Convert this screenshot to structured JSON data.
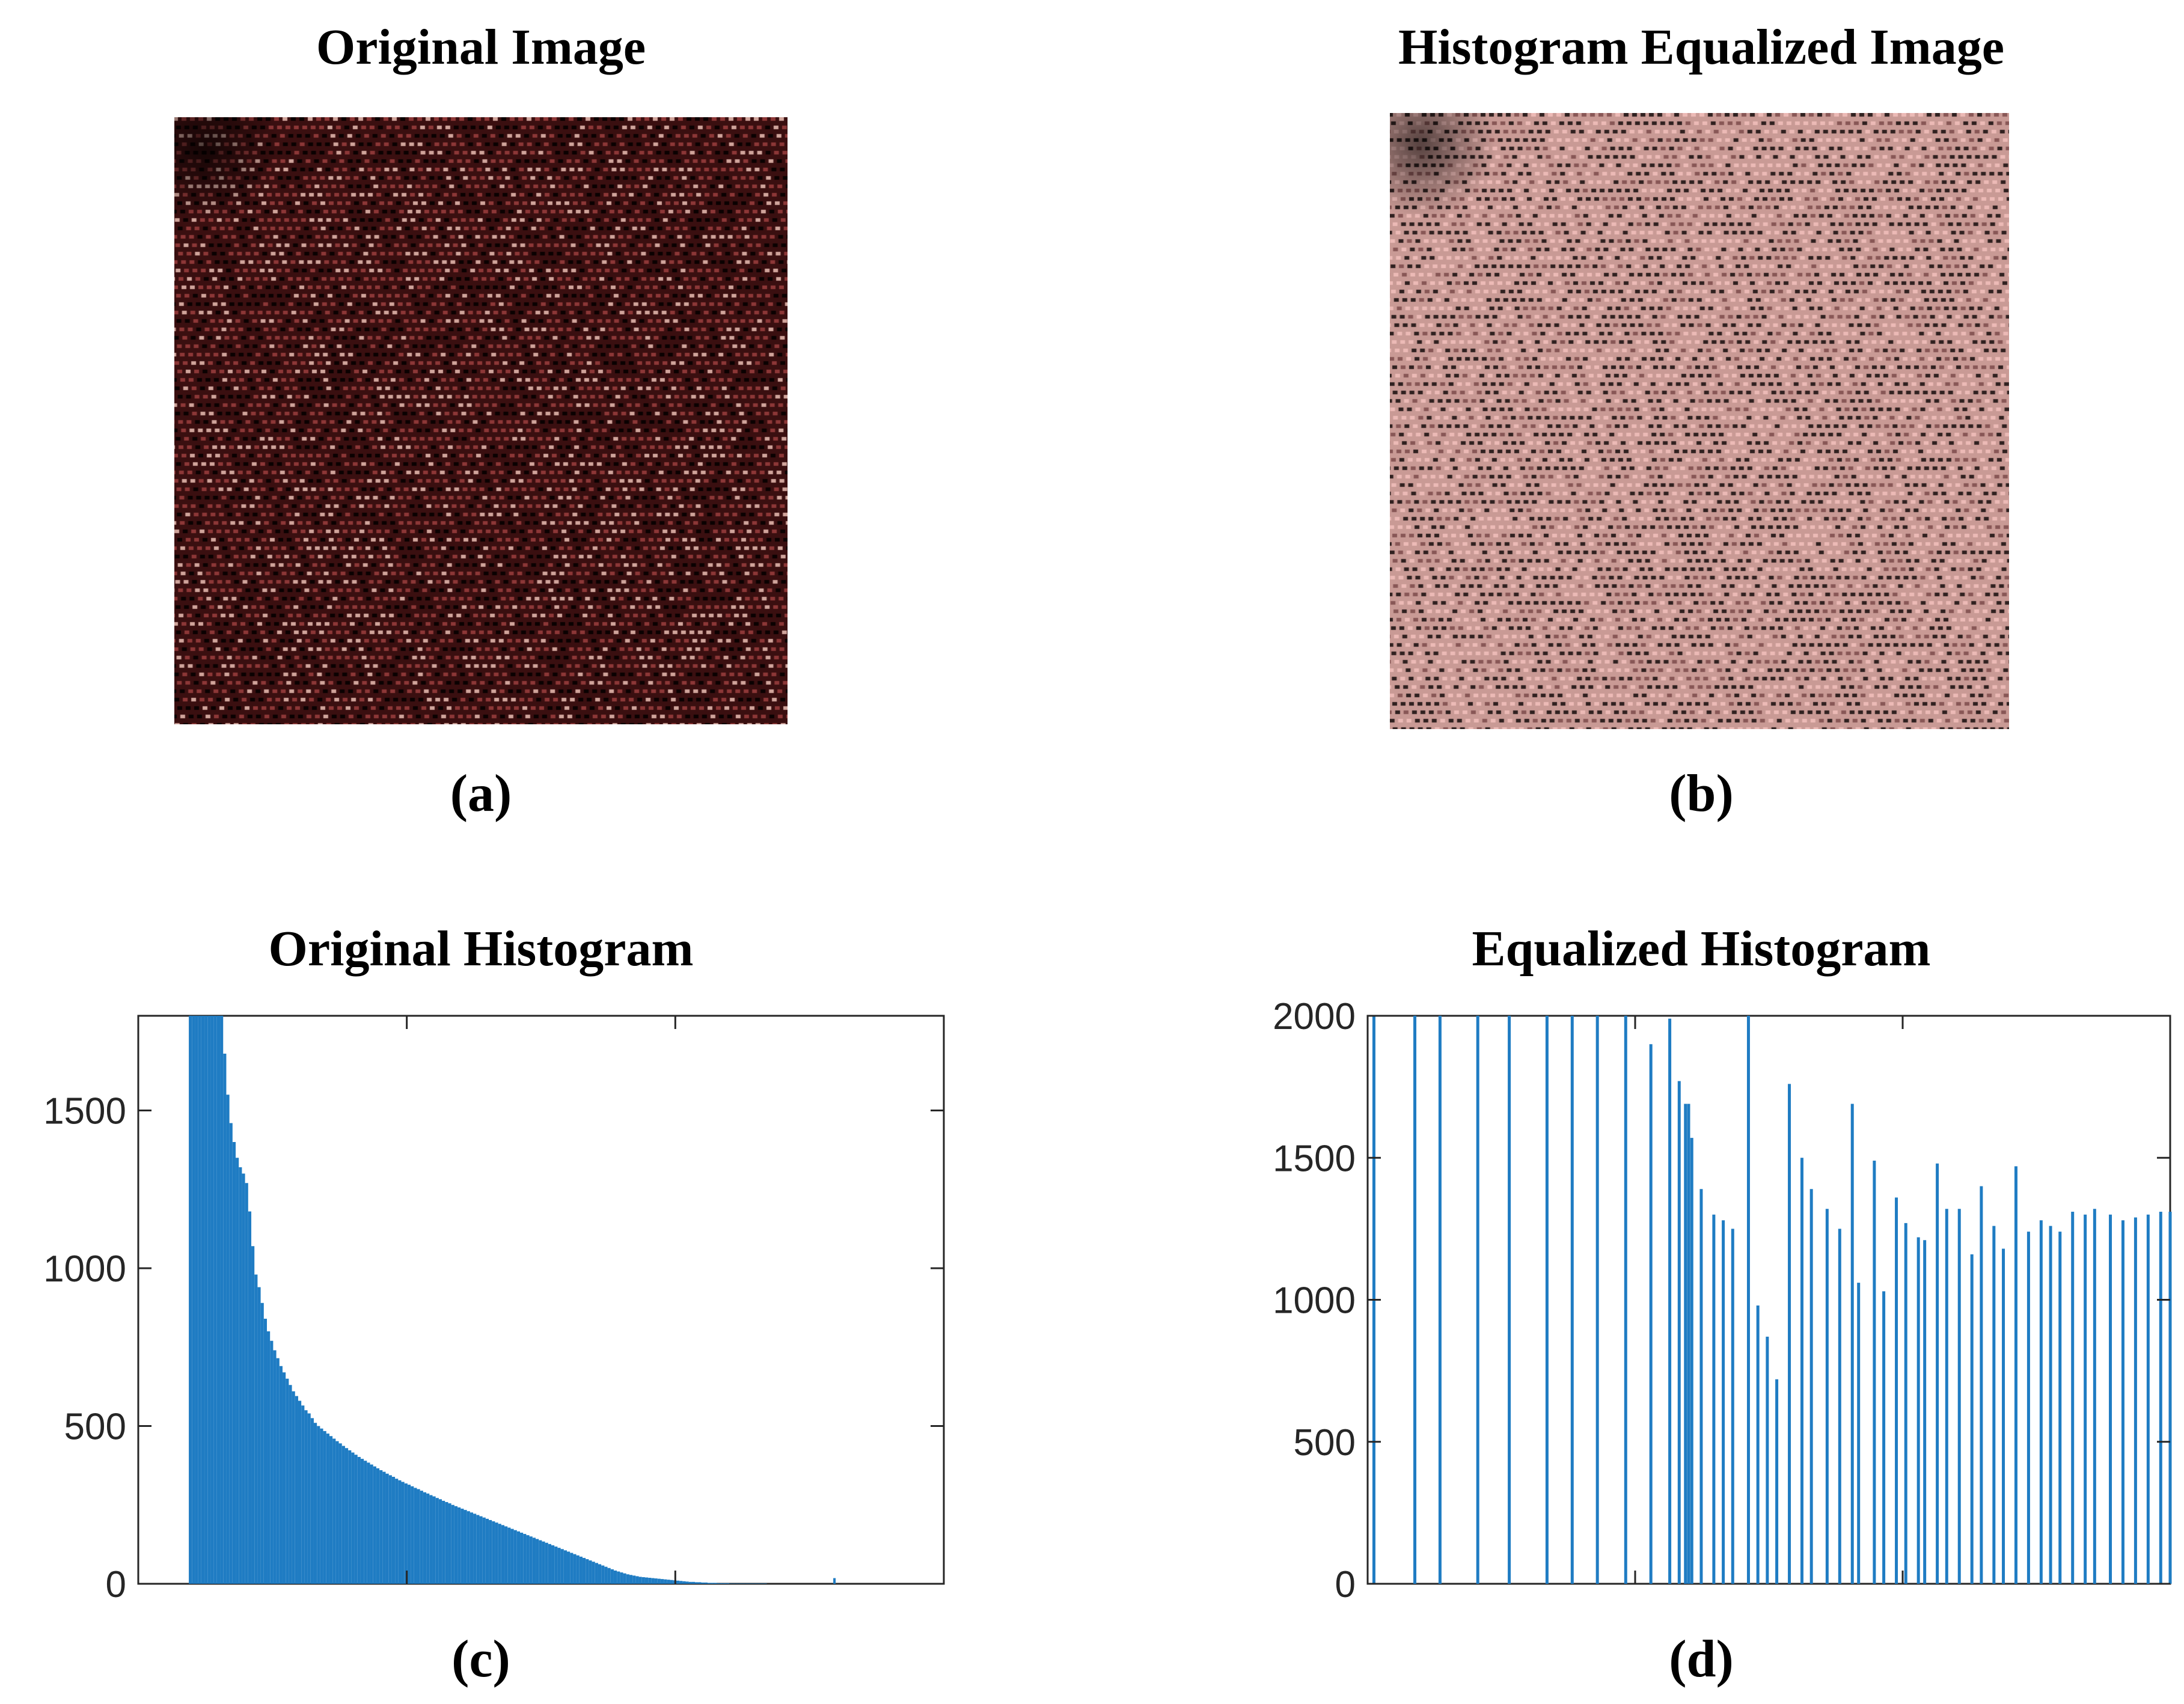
{
  "panels": {
    "a": {
      "title": "Original Image",
      "caption": "(a)"
    },
    "b": {
      "title": "Histogram Equalized Image",
      "caption": "(b)"
    },
    "c": {
      "title": "Original Histogram",
      "caption": "(c)"
    },
    "d": {
      "title": "Equalized Histogram",
      "caption": "(d)"
    }
  },
  "colors": {
    "bar": "#1f7cc3",
    "axis": "#262626",
    "original_texture_base": "#3a0f10",
    "equalized_texture_base": "#c99a95"
  },
  "chart_data": [
    {
      "type": "bar",
      "title": "Original Histogram",
      "ylim": [
        0,
        1800
      ],
      "yticks": [
        0,
        500,
        1000,
        1500
      ],
      "xlim": [
        0,
        255
      ],
      "grid": false,
      "x_start": 16,
      "x_end": 198,
      "values": [
        1800,
        1800,
        1800,
        1800,
        1800,
        1800,
        1800,
        1800,
        1800,
        1800,
        1800,
        1680,
        1550,
        1460,
        1400,
        1350,
        1320,
        1300,
        1270,
        1180,
        1070,
        980,
        940,
        890,
        840,
        800,
        770,
        740,
        715,
        690,
        670,
        650,
        630,
        610,
        595,
        580,
        565,
        550,
        540,
        525,
        510,
        500,
        492,
        484,
        476,
        468,
        460,
        452,
        445,
        437,
        430,
        423,
        416,
        409,
        402,
        396,
        390,
        384,
        378,
        372,
        366,
        360,
        355,
        349,
        344,
        339,
        333,
        328,
        323,
        318,
        314,
        309,
        304,
        300,
        295,
        290,
        286,
        281,
        277,
        272,
        268,
        263,
        259,
        255,
        250,
        246,
        242,
        238,
        234,
        230,
        226,
        222,
        218,
        214,
        210,
        206,
        202,
        198,
        194,
        190,
        186,
        182,
        178,
        174,
        170,
        166,
        162,
        158,
        154,
        150,
        146,
        142,
        138,
        134,
        130,
        126,
        122,
        118,
        114,
        110,
        106,
        102,
        98,
        94,
        90,
        86,
        82,
        78,
        74,
        70,
        66,
        62,
        58,
        54,
        50,
        46,
        42,
        39,
        36,
        33,
        30,
        28,
        26,
        24,
        22,
        21,
        20,
        19,
        18,
        17,
        16,
        15,
        14,
        13,
        12,
        11,
        10,
        9,
        8,
        7,
        6,
        6,
        5,
        5,
        4,
        4,
        3,
        3,
        3,
        2,
        2,
        2,
        2,
        1,
        1,
        1,
        1,
        1,
        1,
        1,
        1,
        1,
        1,
        1,
        1
      ],
      "outlier": {
        "x": 220,
        "y": 18
      }
    },
    {
      "type": "bar",
      "title": "Equalized Histogram",
      "ylim": [
        0,
        2000
      ],
      "yticks": [
        0,
        500,
        1000,
        1500,
        2000
      ],
      "xlim": [
        0,
        255
      ],
      "grid": false,
      "x": [
        2,
        15,
        23,
        35,
        45,
        57,
        65,
        73,
        82,
        90,
        96,
        99,
        101,
        102,
        103,
        106,
        110,
        113,
        116,
        121,
        124,
        127,
        130,
        134,
        138,
        141,
        146,
        150,
        154,
        156,
        161,
        164,
        168,
        171,
        175,
        177,
        181,
        184,
        188,
        192,
        195,
        199,
        202,
        206,
        210,
        214,
        217,
        220,
        224,
        228,
        231,
        236,
        240,
        244,
        248,
        252,
        255
      ],
      "values": [
        2000,
        2000,
        2000,
        2000,
        2000,
        2000,
        2000,
        2000,
        2000,
        1900,
        1990,
        1770,
        1690,
        1690,
        1570,
        1390,
        1300,
        1280,
        1250,
        2000,
        980,
        870,
        720,
        1760,
        1500,
        1390,
        1320,
        1250,
        1690,
        1060,
        1490,
        1030,
        1360,
        1270,
        1220,
        1210,
        1480,
        1320,
        1320,
        1160,
        1400,
        1260,
        1180,
        1470,
        1240,
        1280,
        1260,
        1240,
        1310,
        1300,
        1320,
        1300,
        1280,
        1290,
        1300,
        1310,
        1310
      ]
    }
  ]
}
